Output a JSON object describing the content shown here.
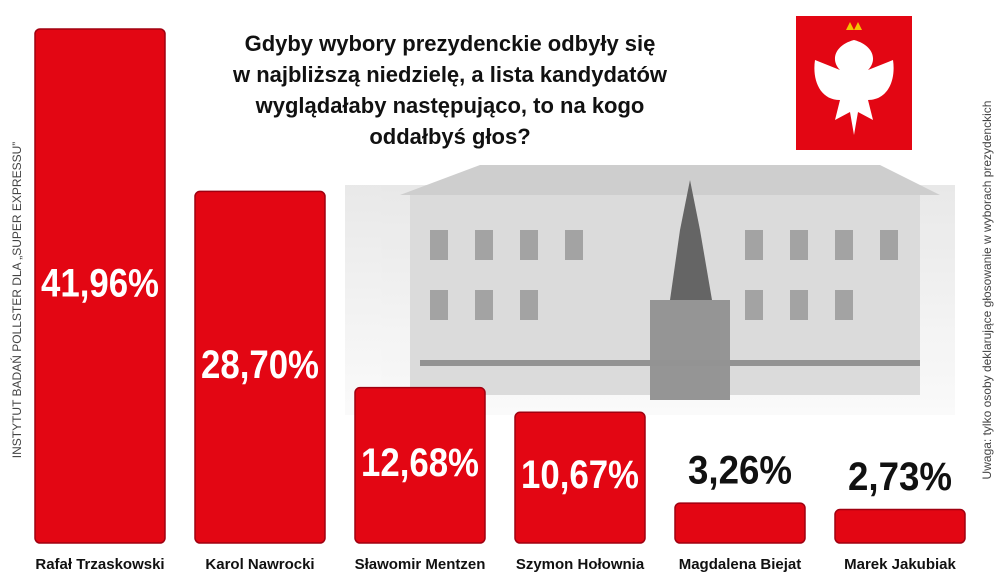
{
  "chart_data": {
    "type": "bar",
    "title": [
      "Gdyby wybory prezydenckie odbyły się",
      "w najbliższą niedzielę, a lista kandydatów",
      "wyglądałaby następująco, to na kogo",
      "oddałbyś głos?"
    ],
    "categories": [
      "Rafał Trzaskowski",
      "Karol Nawrocki",
      "Sławomir Mentzen",
      "Szymon Hołownia",
      "Magdalena Biejat",
      "Marek Jakubiak"
    ],
    "values": [
      41.96,
      28.7,
      12.68,
      10.67,
      3.26,
      2.73
    ],
    "value_labels": [
      "41,96%",
      "28,70%",
      "12,68%",
      "10,67%",
      "3,26%",
      "2,73%"
    ],
    "color": "#e30613",
    "source": "INSTYTUT BADAŃ POLLSTER DLA „SUPER EXPRESSU”",
    "note": "Uwaga: tylko osoby deklarujące głosowanie w wyborach prezydenckich"
  }
}
